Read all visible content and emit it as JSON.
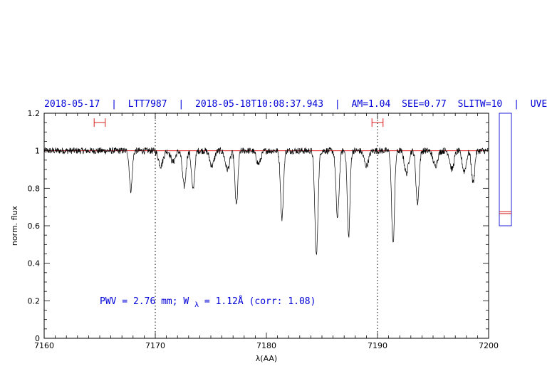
{
  "header": {
    "date": "2018-05-17",
    "target": "LTT7987",
    "timestamp": "2018-05-18T10:08:37.943",
    "airmass": "AM=1.04",
    "seeing": "SEE=0.77",
    "slit": "SLITW=10",
    "instrument": "UVE",
    "separator": "|"
  },
  "annotation": {
    "pwv_text": "PWV = 2.76 mm; W",
    "lambda_subscript": "λ",
    "w_text": " = 1.12Å (corr: 1.08)"
  },
  "colors": {
    "frame": "#000000",
    "spectrum": "#000000",
    "continuum": "#d80000",
    "marker": "#d82020",
    "text": "#0000d8",
    "sidebar": "#2020d8"
  },
  "chart_data": {
    "type": "line",
    "title": "",
    "xlabel": "λ(AA)",
    "ylabel": "norm. flux",
    "xlim": [
      7160,
      7200
    ],
    "ylim": [
      0,
      1.2
    ],
    "x_ticks": [
      "7160",
      "7170",
      "7180",
      "7190",
      "7200"
    ],
    "y_ticks": [
      "0",
      "0.2",
      "0.4",
      "0.6",
      "0.8",
      "1",
      "1.2"
    ],
    "continuum_level": 1.0,
    "vertical_dotted_lines": [
      7170,
      7190
    ],
    "error_bar_markers": [
      {
        "x_min": 7164.5,
        "x_max": 7165.5,
        "y": 1.15
      },
      {
        "x_min": 7189.5,
        "x_max": 7190.5,
        "y": 1.15
      }
    ],
    "absorption_lines": [
      {
        "center": 7167.8,
        "depth": 0.21,
        "width": 0.13
      },
      {
        "center": 7170.5,
        "depth": 0.08,
        "width": 0.2
      },
      {
        "center": 7171.6,
        "depth": 0.06,
        "width": 0.2
      },
      {
        "center": 7172.6,
        "depth": 0.19,
        "width": 0.16
      },
      {
        "center": 7173.4,
        "depth": 0.21,
        "width": 0.14
      },
      {
        "center": 7175.1,
        "depth": 0.08,
        "width": 0.2
      },
      {
        "center": 7176.5,
        "depth": 0.1,
        "width": 0.2
      },
      {
        "center": 7177.3,
        "depth": 0.29,
        "width": 0.13
      },
      {
        "center": 7179.3,
        "depth": 0.07,
        "width": 0.2
      },
      {
        "center": 7181.4,
        "depth": 0.36,
        "width": 0.13
      },
      {
        "center": 7184.5,
        "depth": 0.56,
        "width": 0.14
      },
      {
        "center": 7186.4,
        "depth": 0.36,
        "width": 0.14
      },
      {
        "center": 7187.4,
        "depth": 0.46,
        "width": 0.12
      },
      {
        "center": 7189.0,
        "depth": 0.08,
        "width": 0.2
      },
      {
        "center": 7191.4,
        "depth": 0.5,
        "width": 0.13
      },
      {
        "center": 7192.6,
        "depth": 0.12,
        "width": 0.18
      },
      {
        "center": 7193.6,
        "depth": 0.28,
        "width": 0.14
      },
      {
        "center": 7195.2,
        "depth": 0.08,
        "width": 0.2
      },
      {
        "center": 7196.7,
        "depth": 0.1,
        "width": 0.18
      },
      {
        "center": 7197.8,
        "depth": 0.11,
        "width": 0.18
      },
      {
        "center": 7198.6,
        "depth": 0.17,
        "width": 0.14
      }
    ],
    "sidebar_gauge": {
      "ylim": [
        0.6,
        1.2
      ],
      "markers": [
        0.665,
        0.675
      ]
    }
  }
}
